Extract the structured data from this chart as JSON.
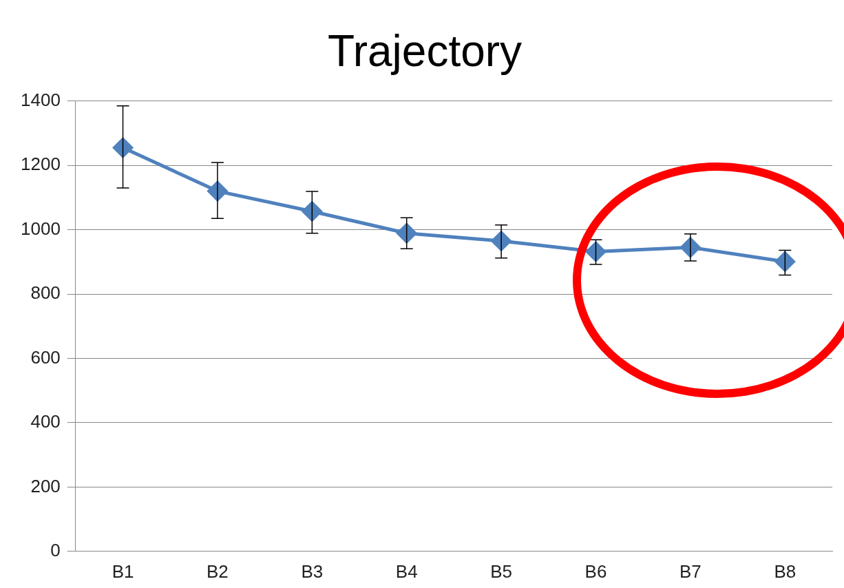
{
  "chart_data": {
    "type": "line",
    "title": "Trajectory",
    "categories": [
      "B1",
      "B2",
      "B3",
      "B4",
      "B5",
      "B6",
      "B7",
      "B8"
    ],
    "series": [
      {
        "color": "#4f81bd",
        "values": [
          1255,
          1120,
          1057,
          989,
          965,
          932,
          945,
          901
        ],
        "errors": [
          [
            1130,
            1385
          ],
          [
            1035,
            1209
          ],
          [
            989,
            1119
          ],
          [
            941,
            1037
          ],
          [
            912,
            1015
          ],
          [
            892,
            969
          ],
          [
            903,
            987
          ],
          [
            859,
            936
          ]
        ]
      }
    ],
    "ylim": [
      0,
      1400
    ],
    "yticks": [
      0,
      200,
      400,
      600,
      800,
      1000,
      1200,
      1400
    ],
    "grid": "y",
    "legend": false,
    "marker": "diamond",
    "line_style": "solid"
  }
}
